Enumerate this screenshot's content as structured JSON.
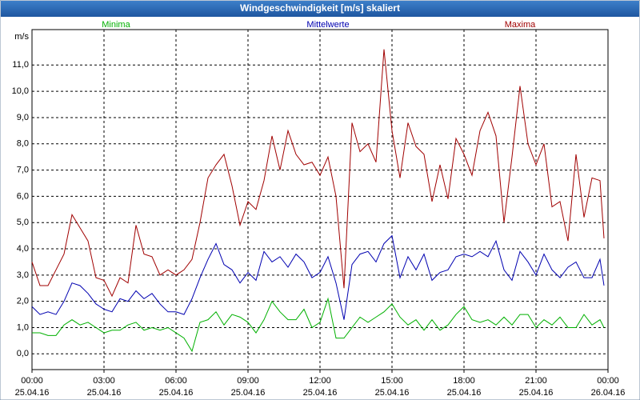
{
  "chart_data": {
    "type": "line",
    "title": "Windgeschwindigkeit [m/s] skaliert",
    "y_label": "m/s",
    "x": [
      0,
      20,
      40,
      60,
      80,
      100,
      120,
      140,
      160,
      180,
      200,
      220,
      240,
      260,
      280,
      300,
      320,
      340,
      360,
      380,
      400,
      420,
      440,
      460,
      480,
      500,
      520,
      540,
      560,
      580,
      600,
      620,
      640,
      660,
      680,
      700,
      720,
      740,
      760,
      780,
      800,
      820,
      840,
      860,
      880,
      900,
      920,
      940,
      960,
      980,
      1000,
      1020,
      1040,
      1060,
      1080,
      1100,
      1120,
      1140,
      1160,
      1180,
      1200,
      1220,
      1240,
      1260,
      1280,
      1300,
      1320,
      1340,
      1360,
      1380,
      1400,
      1420,
      1430
    ],
    "series": [
      {
        "name": "Minima",
        "color": "#00b000",
        "values": [
          0.8,
          0.8,
          0.7,
          0.7,
          1.1,
          1.3,
          1.1,
          1.2,
          1.0,
          0.8,
          0.9,
          0.9,
          1.1,
          1.2,
          0.9,
          1.0,
          0.9,
          1.0,
          0.8,
          0.6,
          0.1,
          1.2,
          1.3,
          1.6,
          1.1,
          1.5,
          1.4,
          1.2,
          0.8,
          1.3,
          2.0,
          1.6,
          1.3,
          1.3,
          1.7,
          1.0,
          1.2,
          2.1,
          0.6,
          0.6,
          1.0,
          1.4,
          1.2,
          1.4,
          1.6,
          1.9,
          1.4,
          1.1,
          1.3,
          0.9,
          1.3,
          0.9,
          1.1,
          1.5,
          1.8,
          1.3,
          1.2,
          1.3,
          1.1,
          1.4,
          1.1,
          1.5,
          1.5,
          1.0,
          1.3,
          1.1,
          1.4,
          1.0,
          1.0,
          1.5,
          1.1,
          1.3,
          1.0
        ]
      },
      {
        "name": "Mittelwerte",
        "color": "#0000b0",
        "values": [
          1.8,
          1.5,
          1.6,
          1.5,
          2.0,
          2.7,
          2.6,
          2.3,
          1.9,
          1.7,
          1.6,
          2.1,
          2.0,
          2.4,
          2.1,
          2.3,
          1.9,
          1.6,
          1.6,
          1.5,
          2.1,
          2.9,
          3.6,
          4.2,
          3.4,
          3.2,
          2.7,
          3.1,
          2.8,
          3.9,
          3.5,
          3.7,
          3.3,
          3.8,
          3.5,
          2.9,
          3.1,
          3.7,
          2.7,
          1.3,
          3.4,
          3.8,
          3.9,
          3.5,
          4.2,
          4.5,
          2.9,
          3.7,
          3.2,
          3.8,
          2.8,
          3.1,
          3.2,
          3.7,
          3.8,
          3.7,
          3.9,
          3.7,
          4.3,
          3.2,
          2.8,
          3.9,
          3.5,
          3.0,
          3.8,
          3.2,
          2.9,
          3.3,
          3.5,
          2.9,
          2.9,
          3.6,
          2.6
        ]
      },
      {
        "name": "Maxima",
        "color": "#a00000",
        "values": [
          3.5,
          2.6,
          2.6,
          3.2,
          3.8,
          5.3,
          4.8,
          4.3,
          2.9,
          2.8,
          2.2,
          2.9,
          2.7,
          4.9,
          3.8,
          3.7,
          3.0,
          3.2,
          3.0,
          3.2,
          3.6,
          5.0,
          6.7,
          7.2,
          7.6,
          6.4,
          4.9,
          5.8,
          5.5,
          6.6,
          8.3,
          7.0,
          8.5,
          7.6,
          7.2,
          7.3,
          6.8,
          7.5,
          6.0,
          2.5,
          8.8,
          7.7,
          8.0,
          7.3,
          11.6,
          8.5,
          6.7,
          8.8,
          7.9,
          7.6,
          5.8,
          7.2,
          5.9,
          8.2,
          7.6,
          6.8,
          8.5,
          9.2,
          8.3,
          5.0,
          7.5,
          10.2,
          8.0,
          7.2,
          8.0,
          5.6,
          5.8,
          4.3,
          7.6,
          5.2,
          6.7,
          6.6,
          4.4
        ]
      }
    ],
    "xlim": [
      0,
      1440
    ],
    "xticks": [
      {
        "value": 0,
        "label": "00:00"
      },
      {
        "value": 180,
        "label": "03:00"
      },
      {
        "value": 360,
        "label": "06:00"
      },
      {
        "value": 540,
        "label": "09:00"
      },
      {
        "value": 720,
        "label": "12:00"
      },
      {
        "value": 900,
        "label": "15:00"
      },
      {
        "value": 1080,
        "label": "18:00"
      },
      {
        "value": 1260,
        "label": "21:00"
      },
      {
        "value": 1440,
        "label": "00:00"
      }
    ],
    "xtick_dates": [
      "25.04.16",
      "25.04.16",
      "25.04.16",
      "25.04.16",
      "25.04.16",
      "25.04.16",
      "25.04.16",
      "25.04.16",
      "26.04.16"
    ],
    "ylim": [
      -0.6,
      12.35
    ],
    "yticks": [
      {
        "value": 0,
        "label": "0,0"
      },
      {
        "value": 1,
        "label": "1,0"
      },
      {
        "value": 2,
        "label": "2,0"
      },
      {
        "value": 3,
        "label": "3,0"
      },
      {
        "value": 4,
        "label": "4,0"
      },
      {
        "value": 5,
        "label": "5,0"
      },
      {
        "value": 6,
        "label": "6,0"
      },
      {
        "value": 7,
        "label": "7,0"
      },
      {
        "value": 8,
        "label": "8,0"
      },
      {
        "value": 9,
        "label": "9,0"
      },
      {
        "value": 10,
        "label": "10,0"
      },
      {
        "value": 11,
        "label": "11,0"
      }
    ],
    "grid": true
  }
}
